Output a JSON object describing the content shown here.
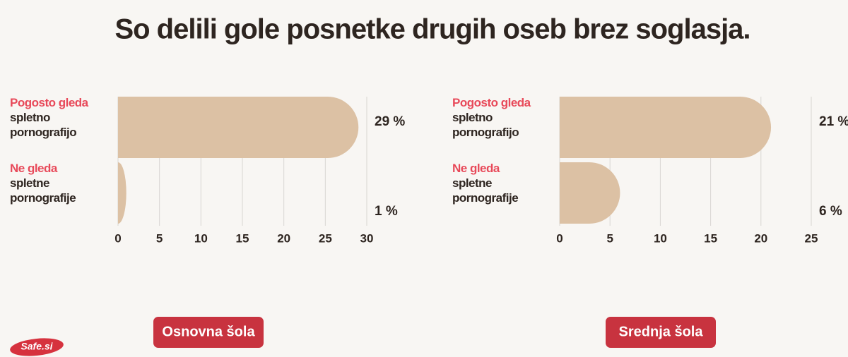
{
  "title": "So delili gole posnetke drugih oseb brez soglasja.",
  "logo": "Safe.si",
  "chart_data": [
    {
      "type": "bar",
      "orientation": "horizontal",
      "label": "Osnovna šola",
      "categories": [
        {
          "label": "Pogosto gleda",
          "detail": "spletno pornografijo"
        },
        {
          "label": "Ne gleda",
          "detail": "spletne pornografije"
        }
      ],
      "values": [
        29,
        1
      ],
      "value_labels": [
        "29 %",
        "1 %"
      ],
      "xlim": [
        0,
        30
      ],
      "xticks": [
        0,
        5,
        10,
        15,
        20,
        25,
        30
      ],
      "color": "#dcc1a4",
      "grid": true
    },
    {
      "type": "bar",
      "orientation": "horizontal",
      "label": "Srednja šola",
      "categories": [
        {
          "label": "Pogosto gleda",
          "detail": "spletno pornografijo"
        },
        {
          "label": "Ne gleda",
          "detail": "spletne pornografije"
        }
      ],
      "values": [
        21,
        6
      ],
      "value_labels": [
        "21 %",
        "6 %"
      ],
      "xlim": [
        0,
        25
      ],
      "xticks": [
        0,
        5,
        10,
        15,
        20,
        25
      ],
      "color": "#dcc1a4",
      "grid": true
    }
  ]
}
